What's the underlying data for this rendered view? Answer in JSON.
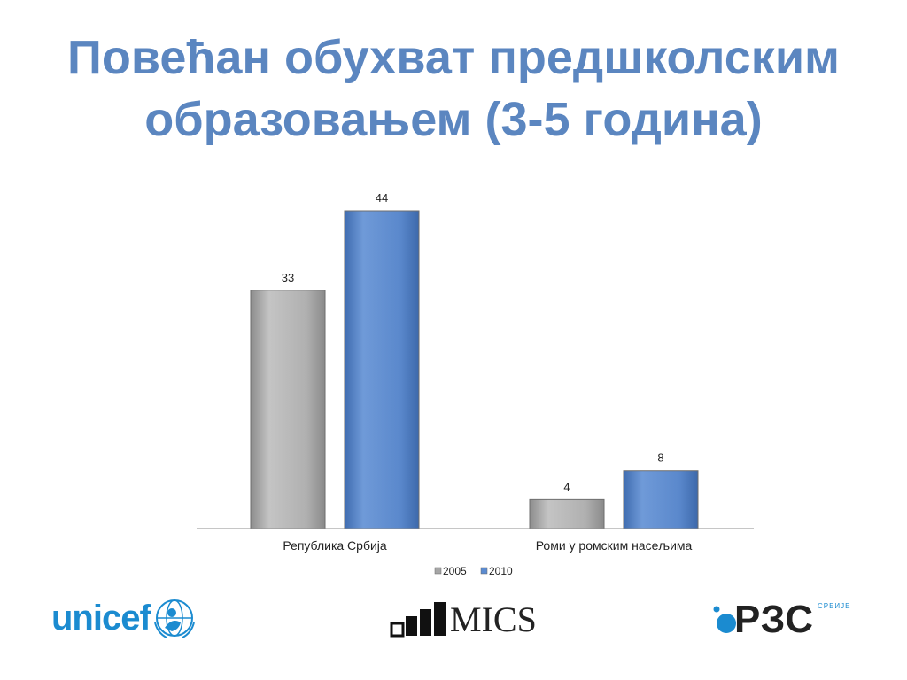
{
  "slide": {
    "title_line1": "Повећан обухват предшколским",
    "title_line2": "образовањем (3-5 година)"
  },
  "chart_data": {
    "type": "bar",
    "categories": [
      "Република Србија",
      "Роми у ромским насељима"
    ],
    "series": [
      {
        "name": "2005",
        "values": [
          33,
          4
        ],
        "color": "#a6a6a6"
      },
      {
        "name": "2010",
        "values": [
          44,
          8
        ],
        "color": "#5b8bd0"
      }
    ],
    "title": "",
    "xlabel": "",
    "ylabel": "",
    "ylim": [
      0,
      44
    ],
    "grid": false,
    "legend": "bottom"
  },
  "logos": {
    "unicef": "unicef",
    "mics": "MICS",
    "rzs": "РЗС",
    "rzs_sub": "СРБИЈЕ"
  }
}
